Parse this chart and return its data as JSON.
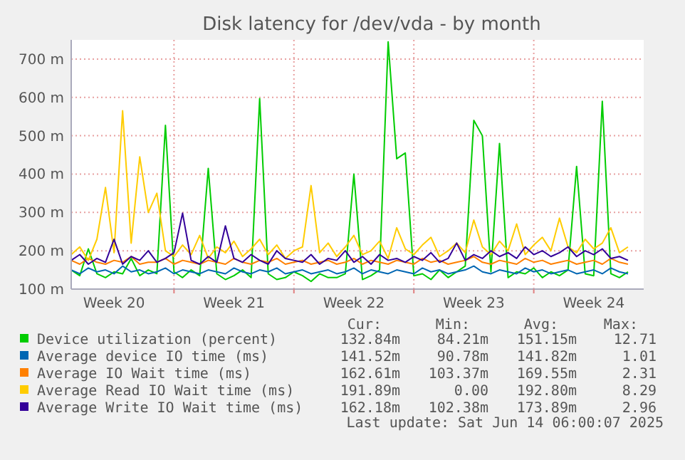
{
  "chart_data": {
    "type": "line",
    "title": "Disk latency for /dev/vda - by month",
    "x": [
      "2025-05-13",
      "2025-05-13T12:00",
      "2025-05-14",
      "2025-05-14T12:00",
      "2025-05-15",
      "2025-05-15T12:00",
      "2025-05-16",
      "2025-05-16T12:00",
      "2025-05-17",
      "2025-05-17T12:00",
      "2025-05-18",
      "2025-05-18T12:00",
      "2025-05-19",
      "2025-05-19T12:00",
      "2025-05-20",
      "2025-05-20T12:00",
      "2025-05-21",
      "2025-05-21T12:00",
      "2025-05-22",
      "2025-05-22T12:00",
      "2025-05-23",
      "2025-05-23T12:00",
      "2025-05-24",
      "2025-05-24T12:00",
      "2025-05-25",
      "2025-05-25T12:00",
      "2025-05-26",
      "2025-05-26T12:00",
      "2025-05-27",
      "2025-05-27T12:00",
      "2025-05-28",
      "2025-05-28T12:00",
      "2025-05-29",
      "2025-05-29T12:00",
      "2025-05-30",
      "2025-05-30T12:00",
      "2025-05-31",
      "2025-05-31T12:00",
      "2025-06-01",
      "2025-06-01T12:00",
      "2025-06-02",
      "2025-06-02T12:00",
      "2025-06-03",
      "2025-06-03T12:00",
      "2025-06-04",
      "2025-06-04T12:00",
      "2025-06-05",
      "2025-06-05T12:00",
      "2025-06-06",
      "2025-06-06T12:00",
      "2025-06-07",
      "2025-06-07T12:00",
      "2025-06-08",
      "2025-06-08T12:00",
      "2025-06-09",
      "2025-06-09T12:00",
      "2025-06-10",
      "2025-06-10T12:00",
      "2025-06-11",
      "2025-06-11T12:00",
      "2025-06-12",
      "2025-06-12T12:00",
      "2025-06-13",
      "2025-06-13T12:00",
      "2025-06-14",
      "2025-06-14T12:00"
    ],
    "series": [
      {
        "name": "Device utilization (percent)",
        "color": "#00cc00",
        "values": [
          150,
          135,
          205,
          140,
          130,
          145,
          140,
          180,
          135,
          150,
          140,
          527,
          145,
          130,
          150,
          135,
          415,
          140,
          125,
          135,
          150,
          130,
          597,
          140,
          125,
          130,
          145,
          135,
          120,
          140,
          130,
          130,
          140,
          400,
          125,
          135,
          150,
          745,
          440,
          455,
          135,
          140,
          125,
          150,
          130,
          145,
          160,
          540,
          500,
          145,
          480,
          130,
          145,
          140,
          155,
          130,
          145,
          135,
          150,
          420,
          140,
          135,
          590,
          140,
          130,
          145
        ]
      },
      {
        "name": "Average device IO time (ms)",
        "color": "#0066b3",
        "values": [
          150,
          140,
          155,
          145,
          150,
          140,
          160,
          145,
          150,
          140,
          145,
          155,
          140,
          150,
          145,
          140,
          150,
          145,
          140,
          155,
          145,
          140,
          150,
          145,
          155,
          140,
          145,
          150,
          140,
          145,
          150,
          140,
          145,
          155,
          140,
          150,
          145,
          140,
          150,
          145,
          140,
          155,
          145,
          150,
          140,
          145,
          150,
          160,
          145,
          140,
          150,
          145,
          140,
          155,
          145,
          150,
          140,
          145,
          150,
          140,
          145,
          150,
          140,
          155,
          145,
          140
        ]
      },
      {
        "name": "Average IO Wait time (ms)",
        "color": "#ff8000",
        "values": [
          175,
          165,
          180,
          170,
          165,
          175,
          170,
          185,
          165,
          170,
          170,
          180,
          165,
          175,
          170,
          165,
          175,
          170,
          165,
          180,
          170,
          165,
          175,
          170,
          180,
          165,
          170,
          175,
          165,
          170,
          175,
          165,
          170,
          180,
          165,
          175,
          170,
          165,
          175,
          170,
          165,
          180,
          170,
          175,
          165,
          170,
          175,
          185,
          170,
          165,
          175,
          170,
          165,
          180,
          170,
          175,
          165,
          170,
          175,
          165,
          170,
          175,
          165,
          180,
          170,
          165
        ]
      },
      {
        "name": "Average Read IO Wait time (ms)",
        "color": "#ffcc00",
        "values": [
          190,
          210,
          175,
          230,
          365,
          195,
          565,
          220,
          445,
          300,
          350,
          200,
          185,
          215,
          190,
          240,
          180,
          210,
          195,
          225,
          185,
          205,
          230,
          190,
          215,
          180,
          200,
          210,
          370,
          195,
          220,
          185,
          210,
          240,
          190,
          200,
          225,
          180,
          260,
          205,
          190,
          215,
          235,
          185,
          200,
          220,
          195,
          280,
          210,
          190,
          225,
          200,
          270,
          190,
          215,
          235,
          200,
          285,
          210,
          195,
          230,
          205,
          220,
          260,
          195,
          210
        ]
      },
      {
        "name": "Average Write IO Wait time (ms)",
        "color": "#330099",
        "values": [
          175,
          190,
          165,
          180,
          170,
          230,
          165,
          185,
          175,
          200,
          170,
          180,
          195,
          298,
          175,
          165,
          185,
          170,
          265,
          180,
          170,
          190,
          175,
          165,
          200,
          180,
          175,
          170,
          190,
          165,
          180,
          175,
          200,
          170,
          185,
          165,
          190,
          175,
          180,
          170,
          185,
          175,
          195,
          170,
          180,
          220,
          175,
          190,
          180,
          200,
          185,
          195,
          180,
          210,
          190,
          200,
          185,
          195,
          210,
          185,
          200,
          190,
          205,
          180,
          185,
          175
        ]
      }
    ],
    "xlim": [
      "2025-05-13",
      "2025-06-15T10:00"
    ],
    "xticks": [
      {
        "value": "2025-05-15T12:00",
        "label": "Week 20"
      },
      {
        "value": "2025-05-19",
        "label": null
      },
      {
        "value": "2025-05-22T12:00",
        "label": "Week 21"
      },
      {
        "value": "2025-05-26",
        "label": null
      },
      {
        "value": "2025-05-29T12:00",
        "label": "Week 22"
      },
      {
        "value": "2025-06-02",
        "label": null
      },
      {
        "value": "2025-06-05T12:00",
        "label": "Week 23"
      },
      {
        "value": "2025-06-09",
        "label": null
      },
      {
        "value": "2025-06-12T12:00",
        "label": "Week 24"
      }
    ],
    "ylim": [
      100,
      750
    ],
    "yticks": [
      {
        "value": 100,
        "label": "100 m"
      },
      {
        "value": 200,
        "label": "200 m"
      },
      {
        "value": 300,
        "label": "300 m"
      },
      {
        "value": 400,
        "label": "400 m"
      },
      {
        "value": 500,
        "label": "500 m"
      },
      {
        "value": 600,
        "label": "600 m"
      },
      {
        "value": 700,
        "label": "700 m"
      }
    ],
    "grid": true,
    "legend": "bottom",
    "marker": "none",
    "line_style": "solid",
    "annotations": [
      "Cur:",
      "Min:",
      "Avg:",
      "Max:",
      "132.84m",
      "84.21m",
      "151.15m",
      "12.71",
      "141.52m",
      "90.78m",
      "141.82m",
      "1.01",
      "162.61m",
      "103.37m",
      "169.55m",
      "2.31",
      "191.89m",
      "0.00",
      "192.80m",
      "8.29",
      "162.18m",
      "102.38m",
      "173.89m",
      "2.96",
      "Last update: Sat Jun 14 06:00:07 2025"
    ]
  }
}
